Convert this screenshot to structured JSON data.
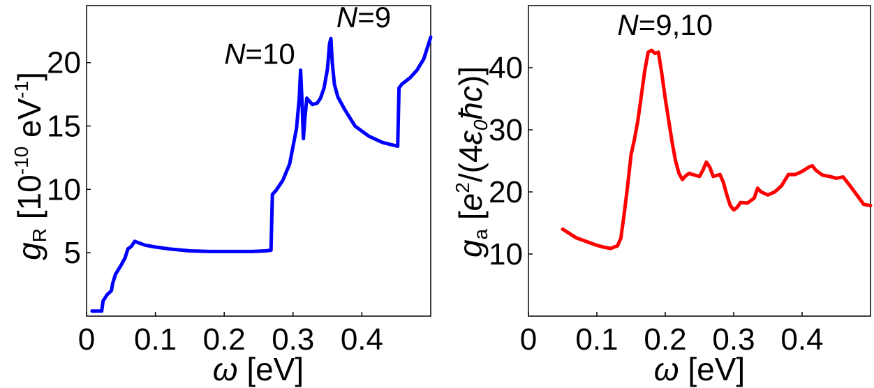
{
  "chart_data": [
    {
      "type": "line",
      "id": "left",
      "ylabel_symbol": "g",
      "ylabel_sub": "R",
      "ylabel_rest": " [10",
      "ylabel_exp": "-10",
      "ylabel_unit": " eV",
      "ylabel_unit_exp": "-1",
      "ylabel_close": "]",
      "xlabel_symbol": "ω",
      "xlabel_rest": " [eV]",
      "xlim": [
        0,
        0.5
      ],
      "ylim": [
        0,
        24.5
      ],
      "xticks": [
        0,
        0.1,
        0.2,
        0.3,
        0.4
      ],
      "xtick_labels": [
        "0",
        "0.1",
        "0.2",
        "0.3",
        "0.4"
      ],
      "yticks": [
        5,
        10,
        15,
        20
      ],
      "ytick_labels": [
        "5",
        "10",
        "15",
        "20"
      ],
      "series": [
        {
          "name": "g_R",
          "color": "#0000ff",
          "points": [
            [
              0.008,
              0.4
            ],
            [
              0.022,
              0.4
            ],
            [
              0.024,
              1.2
            ],
            [
              0.03,
              1.7
            ],
            [
              0.036,
              2.0
            ],
            [
              0.038,
              2.6
            ],
            [
              0.042,
              3.3
            ],
            [
              0.05,
              4.0
            ],
            [
              0.056,
              4.6
            ],
            [
              0.06,
              5.3
            ],
            [
              0.065,
              5.5
            ],
            [
              0.07,
              5.9
            ],
            [
              0.075,
              5.8
            ],
            [
              0.085,
              5.6
            ],
            [
              0.1,
              5.45
            ],
            [
              0.12,
              5.3
            ],
            [
              0.15,
              5.15
            ],
            [
              0.18,
              5.1
            ],
            [
              0.21,
              5.1
            ],
            [
              0.24,
              5.1
            ],
            [
              0.26,
              5.15
            ],
            [
              0.268,
              5.2
            ],
            [
              0.27,
              9.6
            ],
            [
              0.275,
              9.9
            ],
            [
              0.285,
              10.7
            ],
            [
              0.295,
              12.0
            ],
            [
              0.305,
              14.8
            ],
            [
              0.309,
              17.2
            ],
            [
              0.311,
              19.4
            ],
            [
              0.313,
              17.0
            ],
            [
              0.315,
              14.0
            ],
            [
              0.317,
              15.5
            ],
            [
              0.32,
              17.2
            ],
            [
              0.323,
              17.0
            ],
            [
              0.328,
              16.7
            ],
            [
              0.335,
              16.8
            ],
            [
              0.34,
              17.2
            ],
            [
              0.345,
              18.0
            ],
            [
              0.35,
              19.5
            ],
            [
              0.353,
              21.5
            ],
            [
              0.355,
              21.9
            ],
            [
              0.357,
              20.0
            ],
            [
              0.36,
              18.3
            ],
            [
              0.365,
              17.3
            ],
            [
              0.375,
              16.3
            ],
            [
              0.39,
              15.0
            ],
            [
              0.41,
              14.2
            ],
            [
              0.43,
              13.7
            ],
            [
              0.452,
              13.4
            ],
            [
              0.454,
              18.0
            ],
            [
              0.458,
              18.3
            ],
            [
              0.47,
              18.8
            ],
            [
              0.48,
              19.4
            ],
            [
              0.49,
              20.3
            ],
            [
              0.5,
              22.0
            ]
          ]
        }
      ],
      "annotations": [
        {
          "italic": "N",
          "text": "=10",
          "x": 0.2,
          "y": 19.9
        },
        {
          "italic": "N",
          "text": "=9",
          "x": 0.363,
          "y": 22.8
        }
      ]
    },
    {
      "type": "line",
      "id": "right",
      "ylabel_symbol": "g",
      "ylabel_sub": "a",
      "ylabel_rest": " [",
      "ylabel_e": "e",
      "ylabel_e_exp": "2",
      "ylabel_mid": "/(4",
      "ylabel_eps": "ε",
      "ylabel_eps_sub": "0",
      "ylabel_hbar": "ħc",
      "ylabel_close": ")]",
      "xlabel_symbol": "ω",
      "xlabel_rest": " [eV]",
      "xlim": [
        0,
        0.5
      ],
      "ylim": [
        0,
        50
      ],
      "xticks": [
        0,
        0.1,
        0.2,
        0.3,
        0.4
      ],
      "xtick_labels": [
        "0",
        "0.1",
        "0.2",
        "0.3",
        "0.4"
      ],
      "yticks": [
        10,
        20,
        30,
        40
      ],
      "ytick_labels": [
        "10",
        "20",
        "30",
        "40"
      ],
      "series": [
        {
          "name": "g_a",
          "color": "#ff0000",
          "points": [
            [
              0.05,
              14.0
            ],
            [
              0.06,
              13.3
            ],
            [
              0.07,
              12.6
            ],
            [
              0.08,
              12.2
            ],
            [
              0.09,
              11.8
            ],
            [
              0.1,
              11.4
            ],
            [
              0.11,
              11.1
            ],
            [
              0.12,
              10.9
            ],
            [
              0.13,
              11.3
            ],
            [
              0.135,
              12.5
            ],
            [
              0.14,
              16.5
            ],
            [
              0.145,
              21.0
            ],
            [
              0.15,
              26.0
            ],
            [
              0.155,
              28.5
            ],
            [
              0.16,
              31.5
            ],
            [
              0.165,
              35.5
            ],
            [
              0.17,
              39.5
            ],
            [
              0.175,
              42.5
            ],
            [
              0.18,
              42.8
            ],
            [
              0.185,
              42.3
            ],
            [
              0.19,
              42.5
            ],
            [
              0.195,
              39.0
            ],
            [
              0.2,
              35.0
            ],
            [
              0.205,
              31.5
            ],
            [
              0.21,
              28.0
            ],
            [
              0.215,
              25.0
            ],
            [
              0.22,
              23.0
            ],
            [
              0.225,
              22.0
            ],
            [
              0.23,
              22.6
            ],
            [
              0.235,
              23.0
            ],
            [
              0.24,
              22.8
            ],
            [
              0.25,
              22.5
            ],
            [
              0.255,
              23.5
            ],
            [
              0.26,
              24.8
            ],
            [
              0.265,
              24.0
            ],
            [
              0.27,
              22.5
            ],
            [
              0.28,
              22.8
            ],
            [
              0.285,
              21.5
            ],
            [
              0.29,
              19.5
            ],
            [
              0.295,
              17.8
            ],
            [
              0.3,
              17.1
            ],
            [
              0.305,
              17.5
            ],
            [
              0.31,
              18.3
            ],
            [
              0.32,
              18.2
            ],
            [
              0.33,
              19.0
            ],
            [
              0.335,
              20.6
            ],
            [
              0.34,
              20.0
            ],
            [
              0.35,
              19.5
            ],
            [
              0.36,
              20.0
            ],
            [
              0.37,
              21.0
            ],
            [
              0.38,
              22.8
            ],
            [
              0.39,
              22.8
            ],
            [
              0.4,
              23.3
            ],
            [
              0.41,
              24.0
            ],
            [
              0.415,
              24.2
            ],
            [
              0.42,
              23.5
            ],
            [
              0.43,
              22.7
            ],
            [
              0.44,
              22.5
            ],
            [
              0.45,
              22.2
            ],
            [
              0.46,
              22.4
            ],
            [
              0.47,
              21.0
            ],
            [
              0.48,
              19.5
            ],
            [
              0.49,
              18.0
            ],
            [
              0.5,
              17.8
            ]
          ]
        }
      ],
      "annotations": [
        {
          "italic": "N",
          "text": "=9,10",
          "x": 0.13,
          "y": 45.3
        }
      ]
    }
  ]
}
